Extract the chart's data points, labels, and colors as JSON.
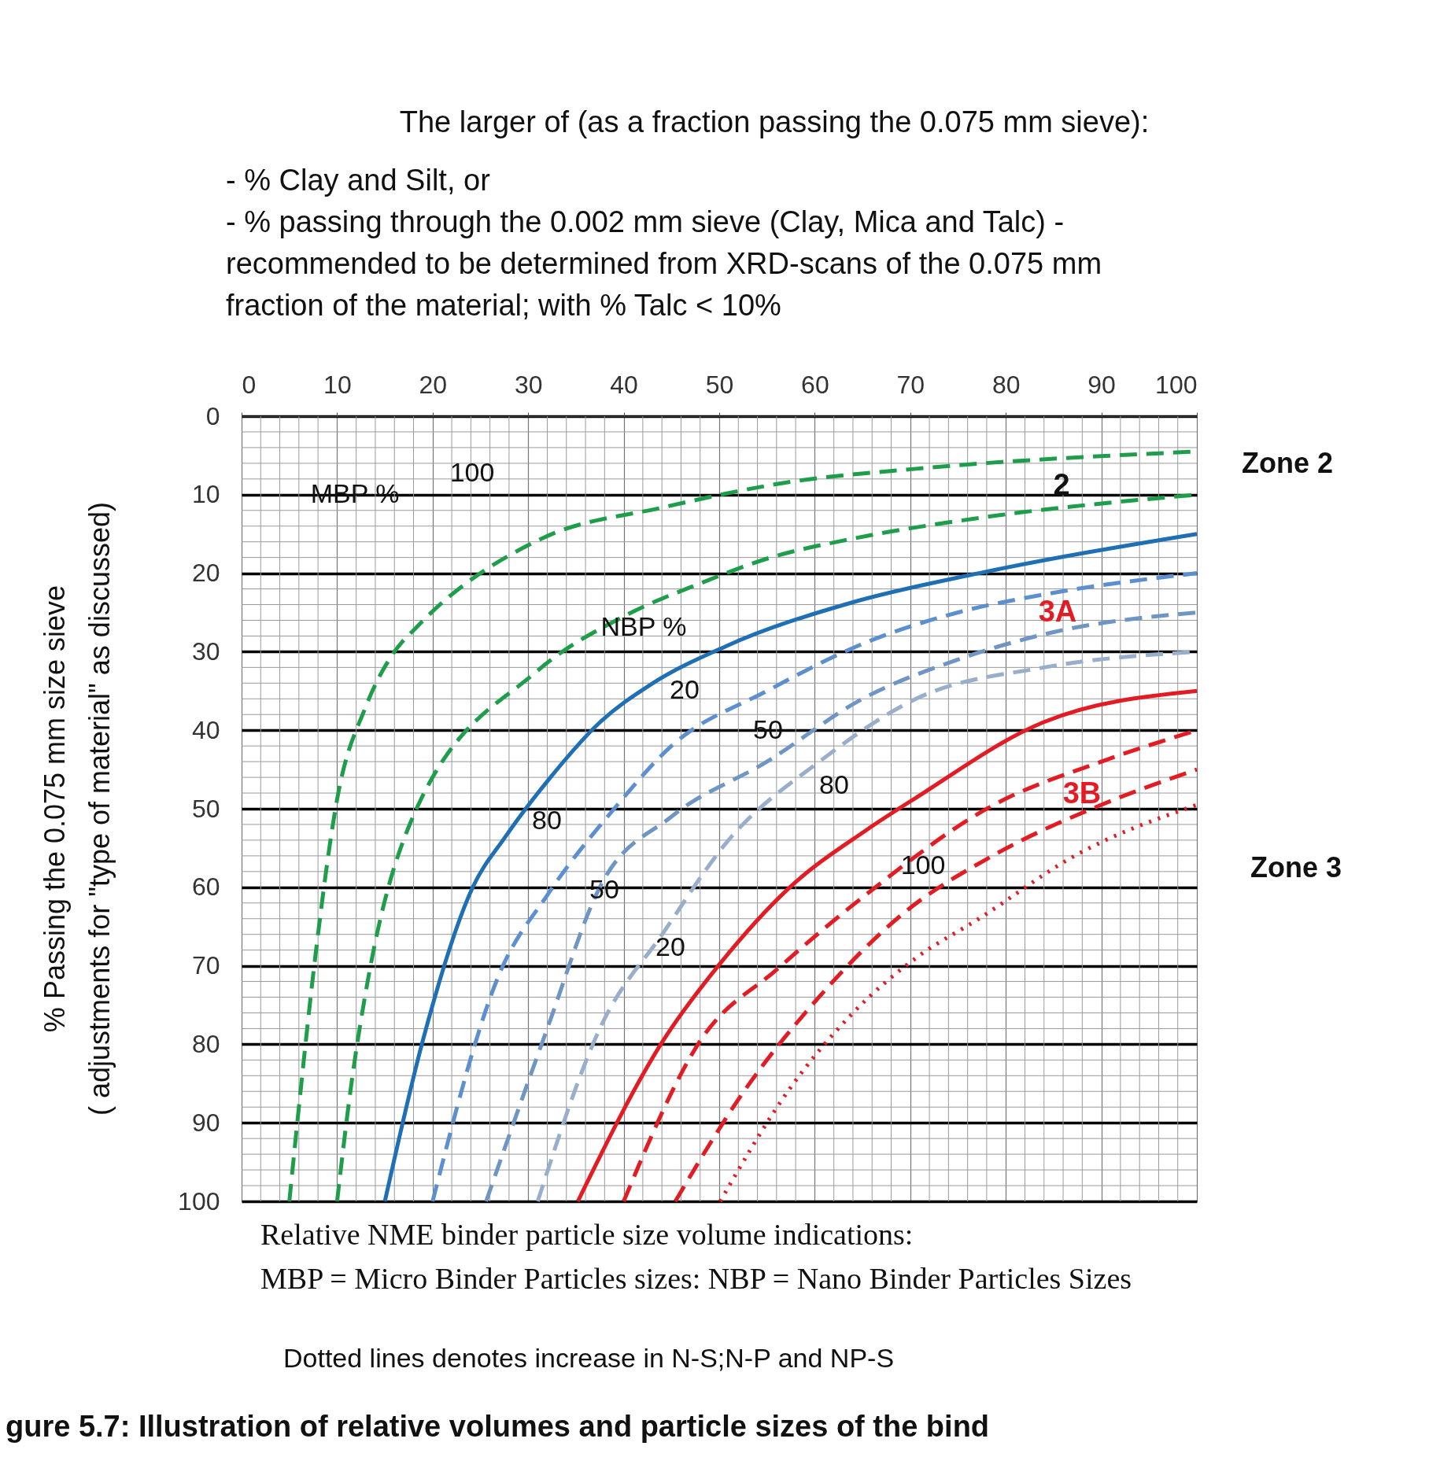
{
  "chart_data": {
    "type": "line",
    "title": "The larger of (as a fraction passing the 0.075 mm sieve):",
    "subtitle": "- % Clay and Silt, or\n- % passing through the 0.002 mm sieve (Clay, Mica and Talc) -\nrecommended to be determined from XRD-scans of the 0.075 mm\nfraction of the material; with % Talc < 10%",
    "ylabel": "% Passing the 0.075 mm size sieve\n( adjustments for \"type of material\" as discussed)",
    "xlim": [
      0,
      100
    ],
    "ylim": [
      100,
      0
    ],
    "xticks": [
      0,
      10,
      20,
      30,
      40,
      50,
      60,
      70,
      80,
      90,
      100
    ],
    "yticks": [
      0,
      10,
      20,
      30,
      40,
      50,
      60,
      70,
      80,
      90,
      100
    ],
    "grid": true,
    "marker": "none",
    "series": [
      {
        "color": "#1e9e4a",
        "line_style": "dashed",
        "x": [
          5,
          6,
          7.8,
          10,
          13,
          16,
          18.3,
          31.4,
          44.2,
          57.3,
          70.6,
          100
        ],
        "values": [
          100,
          88,
          68,
          48.8,
          37,
          30,
          26.9,
          15.6,
          11.6,
          8.4,
          6.7,
          4.5
        ]
      },
      {
        "color": "#1e9e4a",
        "line_style": "dashed",
        "x": [
          10,
          11.5,
          13.3,
          17.6,
          30.9,
          40,
          48,
          55.4,
          64,
          77,
          100
        ],
        "values": [
          100,
          85,
          71.3,
          52,
          32.5,
          25.5,
          21.3,
          18,
          15.6,
          13,
          10
        ]
      },
      {
        "color": "#1f6fb5",
        "line_style": "solid",
        "x": [
          15,
          19,
          24.2,
          27.6,
          32.2,
          37.5,
          42.8,
          50.7,
          64,
          77.2,
          100
        ],
        "values": [
          100,
          79.4,
          60,
          53.6,
          46.2,
          39,
          34.2,
          29.3,
          23.7,
          20,
          15
        ]
      },
      {
        "color": "#5b8fd0",
        "line_style": "dashed",
        "x": [
          20,
          27,
          32,
          39,
          45,
          55,
          65,
          75,
          85,
          100
        ],
        "values": [
          100,
          71,
          61,
          50,
          42,
          35,
          29,
          25,
          22.5,
          20
        ]
      },
      {
        "color": "#6f95c4",
        "line_style": "dashed",
        "x": [
          25.6,
          32,
          37.5,
          45,
          55,
          65,
          75,
          85,
          100
        ],
        "values": [
          100,
          78,
          60,
          51,
          44,
          36,
          31,
          27.5,
          25
        ]
      },
      {
        "color": "#98aecb",
        "line_style": "dashed",
        "x": [
          31,
          37.5,
          44.2,
          50.7,
          60.7,
          70.6,
          84,
          100
        ],
        "values": [
          100,
          78,
          65.7,
          54.4,
          43.8,
          36,
          32,
          30
        ]
      },
      {
        "color": "#e31b23",
        "line_style": "solid",
        "x": [
          35.2,
          44.2,
          50.1,
          57.3,
          65.3,
          70.6,
          83.9,
          100
        ],
        "values": [
          100,
          79.4,
          69.7,
          60.1,
          52.8,
          48.6,
          39,
          35
        ]
      },
      {
        "color": "#e31b23",
        "line_style": "dashed",
        "x": [
          40,
          48.1,
          56,
          65.3,
          78.6,
          90,
          100
        ],
        "values": [
          100,
          79.4,
          70.5,
          61,
          49.6,
          44,
          40
        ]
      },
      {
        "color": "#e31b23",
        "line_style": "dashed",
        "x": [
          45.4,
          52.7,
          60,
          69.3,
          78.6,
          90,
          100
        ],
        "values": [
          100,
          85.8,
          74.6,
          63.3,
          56,
          49.5,
          45
        ]
      },
      {
        "color": "#e31b23",
        "line_style": "dotted",
        "x": [
          50.1,
          57.3,
          64,
          70.6,
          77.2,
          87.2,
          100
        ],
        "values": [
          100,
          85.8,
          76,
          69,
          64,
          56,
          49.5
        ]
      }
    ],
    "annotations": [
      "MBP %",
      "100",
      "NBP %",
      "20",
      "50",
      "80",
      "80",
      "50",
      "20",
      "100",
      "2",
      "3A",
      "3B",
      "Zone 2",
      "Zone 3",
      "Relative NME binder particle size volume indications:",
      "MBP = Micro Binder Particles sizes: NBP = Nano Binder Particles Sizes",
      "Dotted lines denotes increase in N-S;N-P and NP-S",
      "gure 5.7: Illustration of relative volumes and particle sizes of the bind"
    ]
  }
}
